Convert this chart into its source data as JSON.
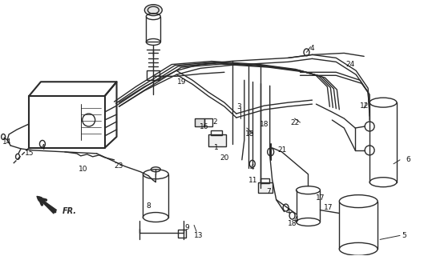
{
  "bg_color": "#ffffff",
  "line_color": "#2a2a2a",
  "label_color": "#111111",
  "fig_width": 5.29,
  "fig_height": 3.2,
  "dpi": 100
}
